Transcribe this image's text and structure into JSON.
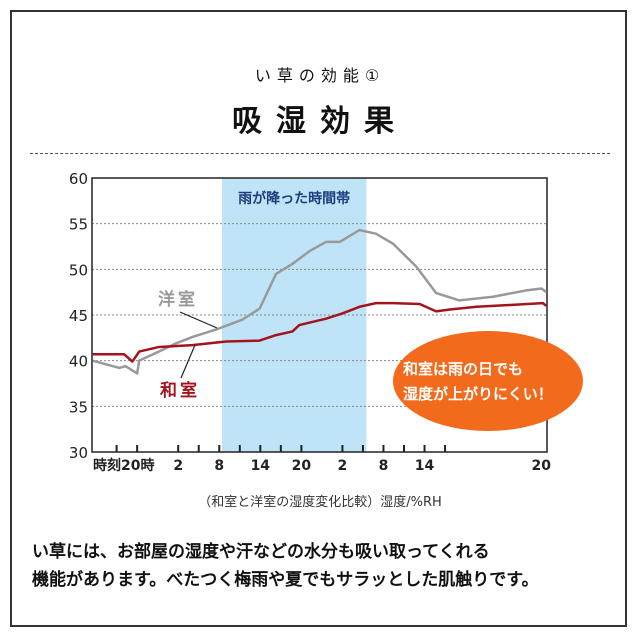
{
  "header": {
    "subtitle": "い草の効能①",
    "title": "吸湿効果"
  },
  "chart_data": {
    "type": "line",
    "title": "",
    "caption": "（和室と洋室の湿度変化比較）湿度/%RH",
    "ylim": [
      30,
      60
    ],
    "yticks": [
      30,
      35,
      40,
      45,
      50,
      55,
      60
    ],
    "xlim": [
      -6.6,
      59.9
    ],
    "x_unit": "hours from 20時",
    "xticks": [
      {
        "label": "時刻20時",
        "x": 0
      },
      {
        "label": "2",
        "x": 6
      },
      {
        "label": "8",
        "x": 12
      },
      {
        "label": "14",
        "x": 18
      },
      {
        "label": "20",
        "x": 24
      },
      {
        "label": "2",
        "x": 30
      },
      {
        "label": "8",
        "x": 36
      },
      {
        "label": "14",
        "x": 42
      },
      {
        "label": "20",
        "x": 60
      }
    ],
    "minor_ticks": [
      -3,
      0,
      6,
      9,
      12,
      15,
      18,
      21,
      24,
      30,
      33,
      36,
      39,
      42,
      45
    ],
    "grid": "horizontal dotted",
    "rain_band": {
      "label": "雨が降った時間帯",
      "from": 12.4,
      "to": 33.5,
      "color": "#bfe4f8"
    },
    "series": [
      {
        "name": "洋室",
        "color": "#999999",
        "points": [
          [
            -6.5,
            40.0
          ],
          [
            -2.6,
            39.2
          ],
          [
            -1.7,
            39.4
          ],
          [
            0,
            38.6
          ],
          [
            0.3,
            40.0
          ],
          [
            3.2,
            41.0
          ],
          [
            5.7,
            41.9
          ],
          [
            8.1,
            42.6
          ],
          [
            11.5,
            43.4
          ],
          [
            15.4,
            44.5
          ],
          [
            17.9,
            45.7
          ],
          [
            20.3,
            49.5
          ],
          [
            22.7,
            50.6
          ],
          [
            25.2,
            52.0
          ],
          [
            27.6,
            53.0
          ],
          [
            29.6,
            53.0
          ],
          [
            32.5,
            54.3
          ],
          [
            34.9,
            53.9
          ],
          [
            37.4,
            52.8
          ],
          [
            40.8,
            50.3
          ],
          [
            43.7,
            47.4
          ],
          [
            47.1,
            46.6
          ],
          [
            52.0,
            47.0
          ],
          [
            56.9,
            47.7
          ],
          [
            59.1,
            47.9
          ],
          [
            59.8,
            47.5
          ]
        ]
      },
      {
        "name": "和室",
        "color": "#a3141e",
        "points": [
          [
            -6.5,
            40.7
          ],
          [
            -1.9,
            40.7
          ],
          [
            -0.7,
            39.9
          ],
          [
            0.3,
            41.0
          ],
          [
            3.2,
            41.5
          ],
          [
            8.1,
            41.7
          ],
          [
            13.0,
            42.1
          ],
          [
            17.9,
            42.2
          ],
          [
            20.3,
            42.8
          ],
          [
            22.7,
            43.2
          ],
          [
            23.7,
            43.9
          ],
          [
            27.6,
            44.6
          ],
          [
            30.1,
            45.2
          ],
          [
            32.5,
            45.9
          ],
          [
            34.9,
            46.3
          ],
          [
            37.4,
            46.3
          ],
          [
            41.3,
            46.2
          ],
          [
            43.7,
            45.4
          ],
          [
            45.7,
            45.6
          ],
          [
            49.6,
            45.9
          ],
          [
            54.5,
            46.1
          ],
          [
            59.3,
            46.3
          ],
          [
            59.8,
            46.0
          ]
        ]
      }
    ],
    "callout": {
      "lines": [
        "和室は雨の日でも",
        "湿度が上がりにくい！"
      ],
      "color": "#f26a1b"
    }
  },
  "description": [
    "い草には、お部屋の湿度や汗などの水分も吸い取ってくれる",
    "機能があります。べたつく梅雨や夏でもサラッとした肌触りです。"
  ]
}
